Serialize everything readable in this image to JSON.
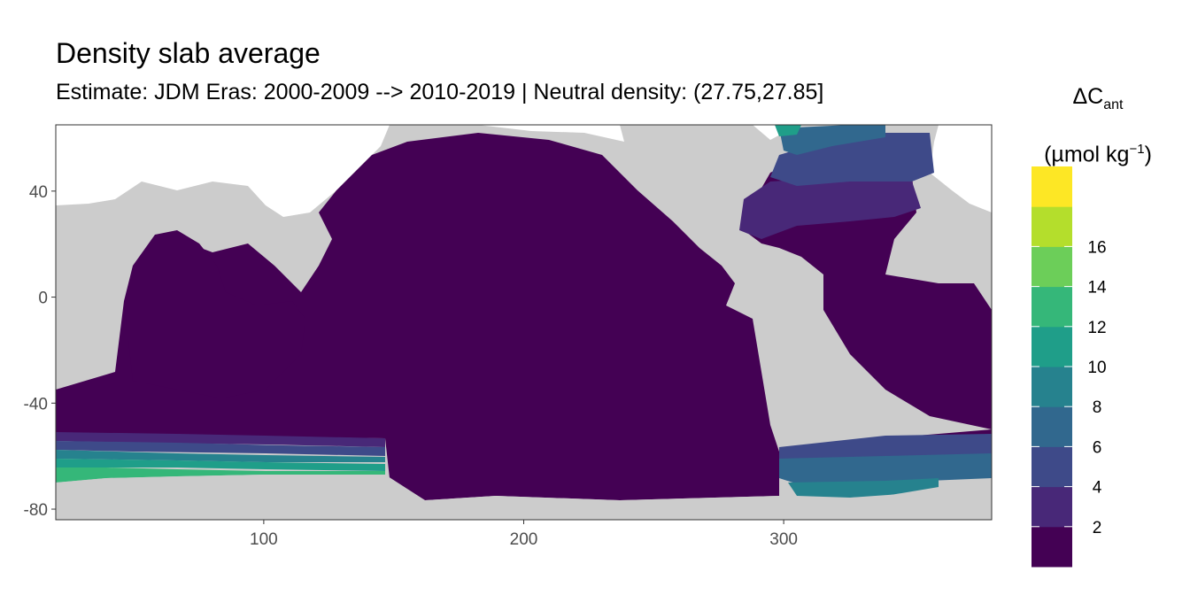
{
  "title": "Density slab average",
  "subtitle": "Estimate: JDM Eras: 2000-2009 --> 2010-2019 | Neutral density: (27.75,27.85]",
  "legend": {
    "symbol": "ΔC",
    "subscript": "ant",
    "unit_prefix": "(µmol kg",
    "unit_sup": "−1",
    "unit_suffix": ")",
    "labels": [
      "2",
      "4",
      "6",
      "8",
      "10",
      "12",
      "14",
      "16"
    ],
    "colors": [
      "#440154",
      "#482878",
      "#3E4A89",
      "#31688E",
      "#26828E",
      "#1F9E89",
      "#35B779",
      "#6CCE59",
      "#B4DE2C",
      "#FDE725"
    ]
  },
  "axes": {
    "x_ticks": [
      "100",
      "200",
      "300"
    ],
    "y_ticks": [
      "40",
      "0",
      "-40",
      "-80"
    ],
    "x_range": [
      20,
      380
    ],
    "y_range": [
      -84,
      65
    ]
  },
  "colors": {
    "land": "#cccccc",
    "no_data": "#ffffff",
    "ocean_low": "#440154",
    "border": "#333333"
  }
}
